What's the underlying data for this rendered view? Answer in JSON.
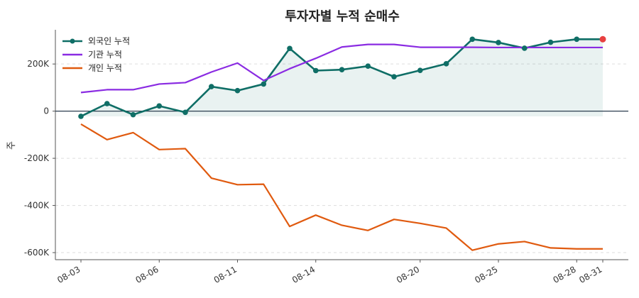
{
  "chart_data": {
    "type": "line",
    "title": "투자자별 누적 순매수",
    "xlabel": "",
    "ylabel": "주",
    "x": [
      "08-03",
      "08-04",
      "08-05",
      "08-06",
      "08-07",
      "08-10",
      "08-11",
      "08-12",
      "08-13",
      "08-14",
      "08-17",
      "08-18",
      "08-19",
      "08-20",
      "08-21",
      "08-24",
      "08-25",
      "08-26",
      "08-27",
      "08-28",
      "08-31"
    ],
    "x_tick_labels": [
      "08-03",
      "08-06",
      "08-11",
      "08-14",
      "08-20",
      "08-25",
      "08-28",
      "08-31"
    ],
    "y_ticks": [
      200000,
      0,
      -200000,
      -400000,
      -600000
    ],
    "y_tick_labels": [
      "200K",
      "0",
      "-200K",
      "-400K",
      "-600K"
    ],
    "ylim": [
      -630000,
      345000
    ],
    "grid": "horizontal dashed",
    "legend_position": "top-left",
    "series": [
      {
        "name": "외국인 누적",
        "color": "#0f6e66",
        "markers": true,
        "fill_area": true,
        "values": [
          -22000,
          32000,
          -15000,
          22000,
          -5000,
          104000,
          87000,
          115000,
          266000,
          172000,
          176000,
          191000,
          146000,
          173000,
          201000,
          305000,
          291000,
          267000,
          292000,
          305000,
          305000
        ]
      },
      {
        "name": "기관 누적",
        "color": "#8a2be2",
        "markers": false,
        "fill_area": false,
        "values": [
          79000,
          91000,
          91000,
          115000,
          121000,
          166000,
          204000,
          130000,
          180000,
          224000,
          272000,
          283000,
          283000,
          271000,
          271000,
          271000,
          270000,
          270000,
          270000,
          270000,
          270000
        ]
      },
      {
        "name": "개인 누적",
        "color": "#e05a0f",
        "markers": false,
        "fill_area": false,
        "values": [
          -55000,
          -121000,
          -91000,
          -163000,
          -159000,
          -284000,
          -312000,
          -310000,
          -489000,
          -441000,
          -484000,
          -506000,
          -459000,
          -476000,
          -496000,
          -590000,
          -563000,
          -553000,
          -580000,
          -584000,
          -584000
        ]
      }
    ],
    "highlight_last_point": {
      "series": "외국인 누적",
      "color": "#e84040"
    },
    "zero_line_color": "#2c3e50"
  }
}
